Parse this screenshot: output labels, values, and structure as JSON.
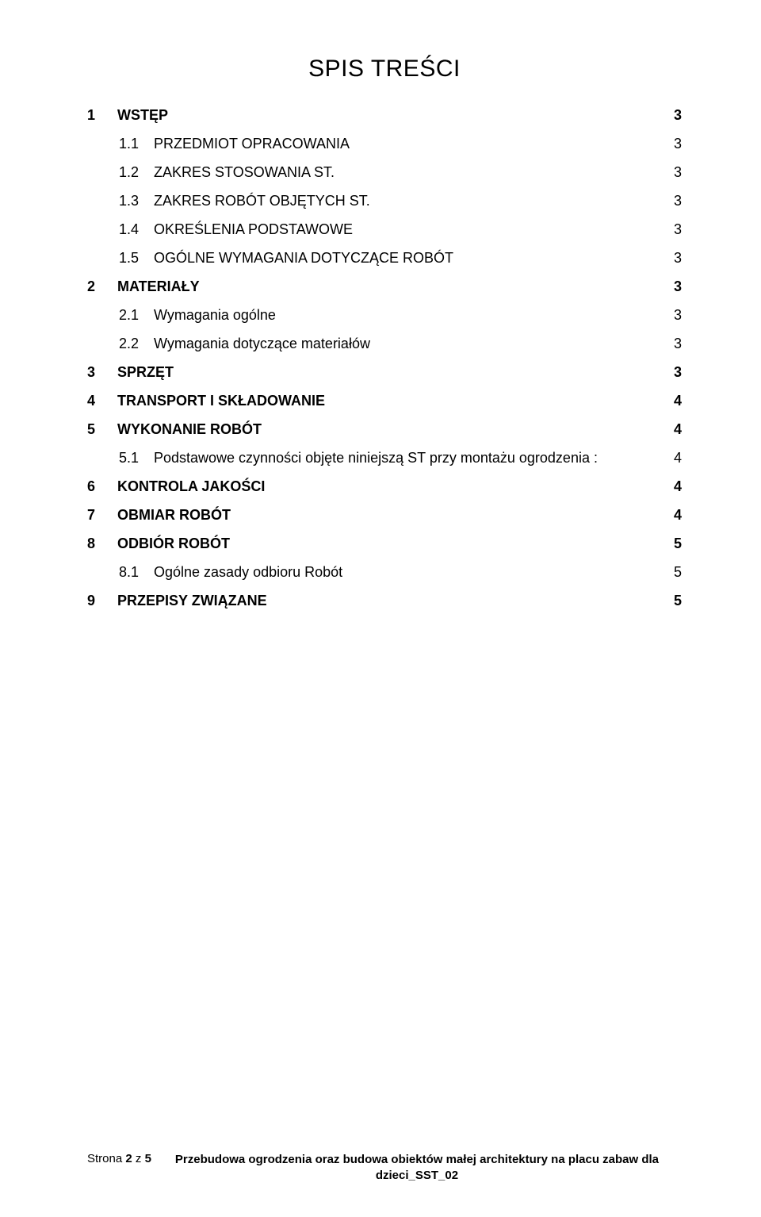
{
  "title": "SPIS TREŚCI",
  "toc": [
    {
      "level": 1,
      "num": "1",
      "label": "WSTĘP",
      "page": "3",
      "bold": true
    },
    {
      "level": 2,
      "num": "1.1",
      "label": "PRZEDMIOT OPRACOWANIA",
      "page": "3",
      "bold": false
    },
    {
      "level": 2,
      "num": "1.2",
      "label": "ZAKRES STOSOWANIA ST.",
      "page": "3",
      "bold": false
    },
    {
      "level": 2,
      "num": "1.3",
      "label": "ZAKRES ROBÓT OBJĘTYCH ST.",
      "page": "3",
      "bold": false
    },
    {
      "level": 2,
      "num": "1.4",
      "label": "OKREŚLENIA PODSTAWOWE",
      "page": "3",
      "bold": false
    },
    {
      "level": 2,
      "num": "1.5",
      "label": "OGÓLNE WYMAGANIA DOTYCZĄCE ROBÓT",
      "page": "3",
      "bold": false
    },
    {
      "level": 1,
      "num": "2",
      "label": "MATERIAŁY",
      "page": "3",
      "bold": true
    },
    {
      "level": 2,
      "num": "2.1",
      "label": "Wymagania ogólne",
      "page": "3",
      "bold": false
    },
    {
      "level": 2,
      "num": "2.2",
      "label": "Wymagania dotyczące materiałów",
      "page": "3",
      "bold": false
    },
    {
      "level": 1,
      "num": "3",
      "label": "SPRZĘT",
      "page": "3",
      "bold": true
    },
    {
      "level": 1,
      "num": "4",
      "label": "TRANSPORT I SKŁADOWANIE",
      "page": "4",
      "bold": true
    },
    {
      "level": 1,
      "num": "5",
      "label": "WYKONANIE ROBÓT",
      "page": "4",
      "bold": true
    },
    {
      "level": 2,
      "num": "5.1",
      "label": "Podstawowe czynności objęte niniejszą ST przy montażu ogrodzenia :",
      "page": "4",
      "bold": false
    },
    {
      "level": 1,
      "num": "6",
      "label": "KONTROLA JAKOŚCI",
      "page": "4",
      "bold": true
    },
    {
      "level": 1,
      "num": "7",
      "label": "OBMIAR ROBÓT",
      "page": "4",
      "bold": true
    },
    {
      "level": 1,
      "num": "8",
      "label": "ODBIÓR ROBÓT",
      "page": "5",
      "bold": true
    },
    {
      "level": 2,
      "num": "8.1",
      "label": "Ogólne zasady odbioru Robót",
      "page": "5",
      "bold": false
    },
    {
      "level": 1,
      "num": "9",
      "label": "PRZEPISY ZWIĄZANE",
      "page": "5",
      "bold": true
    }
  ],
  "footer": {
    "page_prefix": "Strona ",
    "page_current": "2",
    "page_sep": " z ",
    "page_total": "5",
    "text_line1": "Przebudowa ogrodzenia oraz budowa obiektów małej architektury na placu zabaw dla",
    "text_line2": "dzieci_SST_02"
  }
}
